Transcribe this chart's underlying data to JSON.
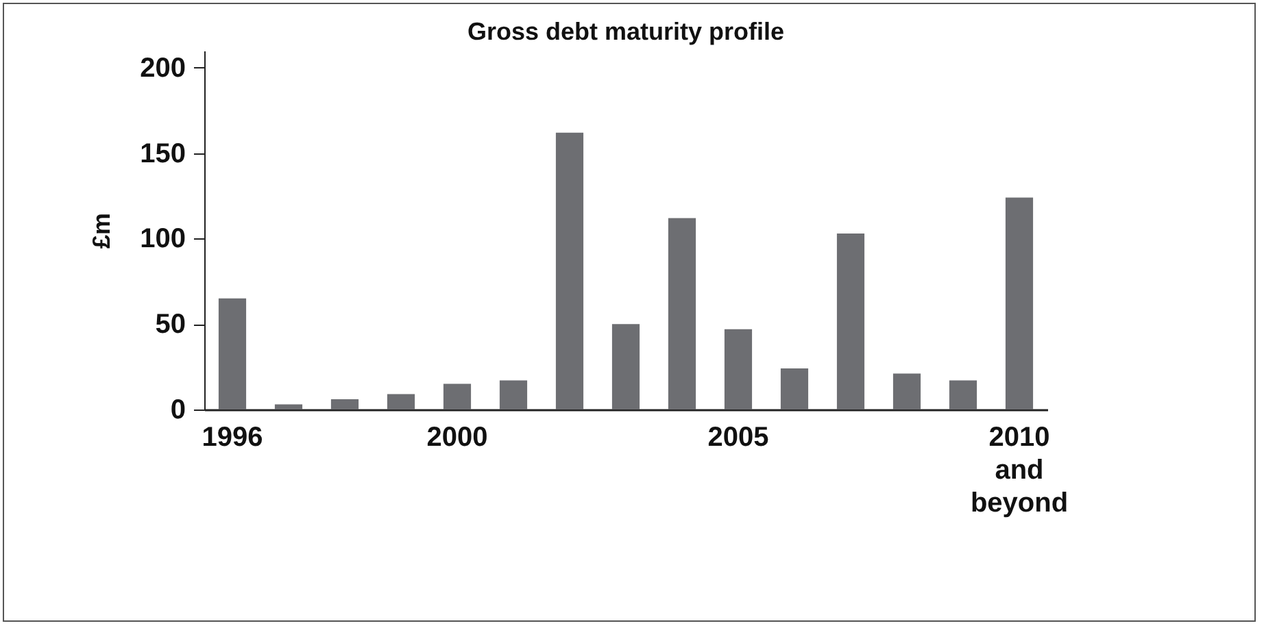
{
  "chart_data": {
    "type": "bar",
    "title": "Gross debt maturity profile",
    "ylabel": "£m",
    "categories": [
      "1996",
      null,
      null,
      null,
      "2000",
      null,
      null,
      null,
      null,
      "2005",
      null,
      null,
      null,
      null,
      "2010 and beyond"
    ],
    "values": [
      65,
      3,
      6,
      9,
      15,
      17,
      162,
      50,
      112,
      47,
      24,
      103,
      21,
      17,
      124
    ],
    "color": "#6d6e72",
    "ylim": [
      0,
      210
    ],
    "yticks": [
      0,
      50,
      100,
      150,
      200
    ]
  }
}
